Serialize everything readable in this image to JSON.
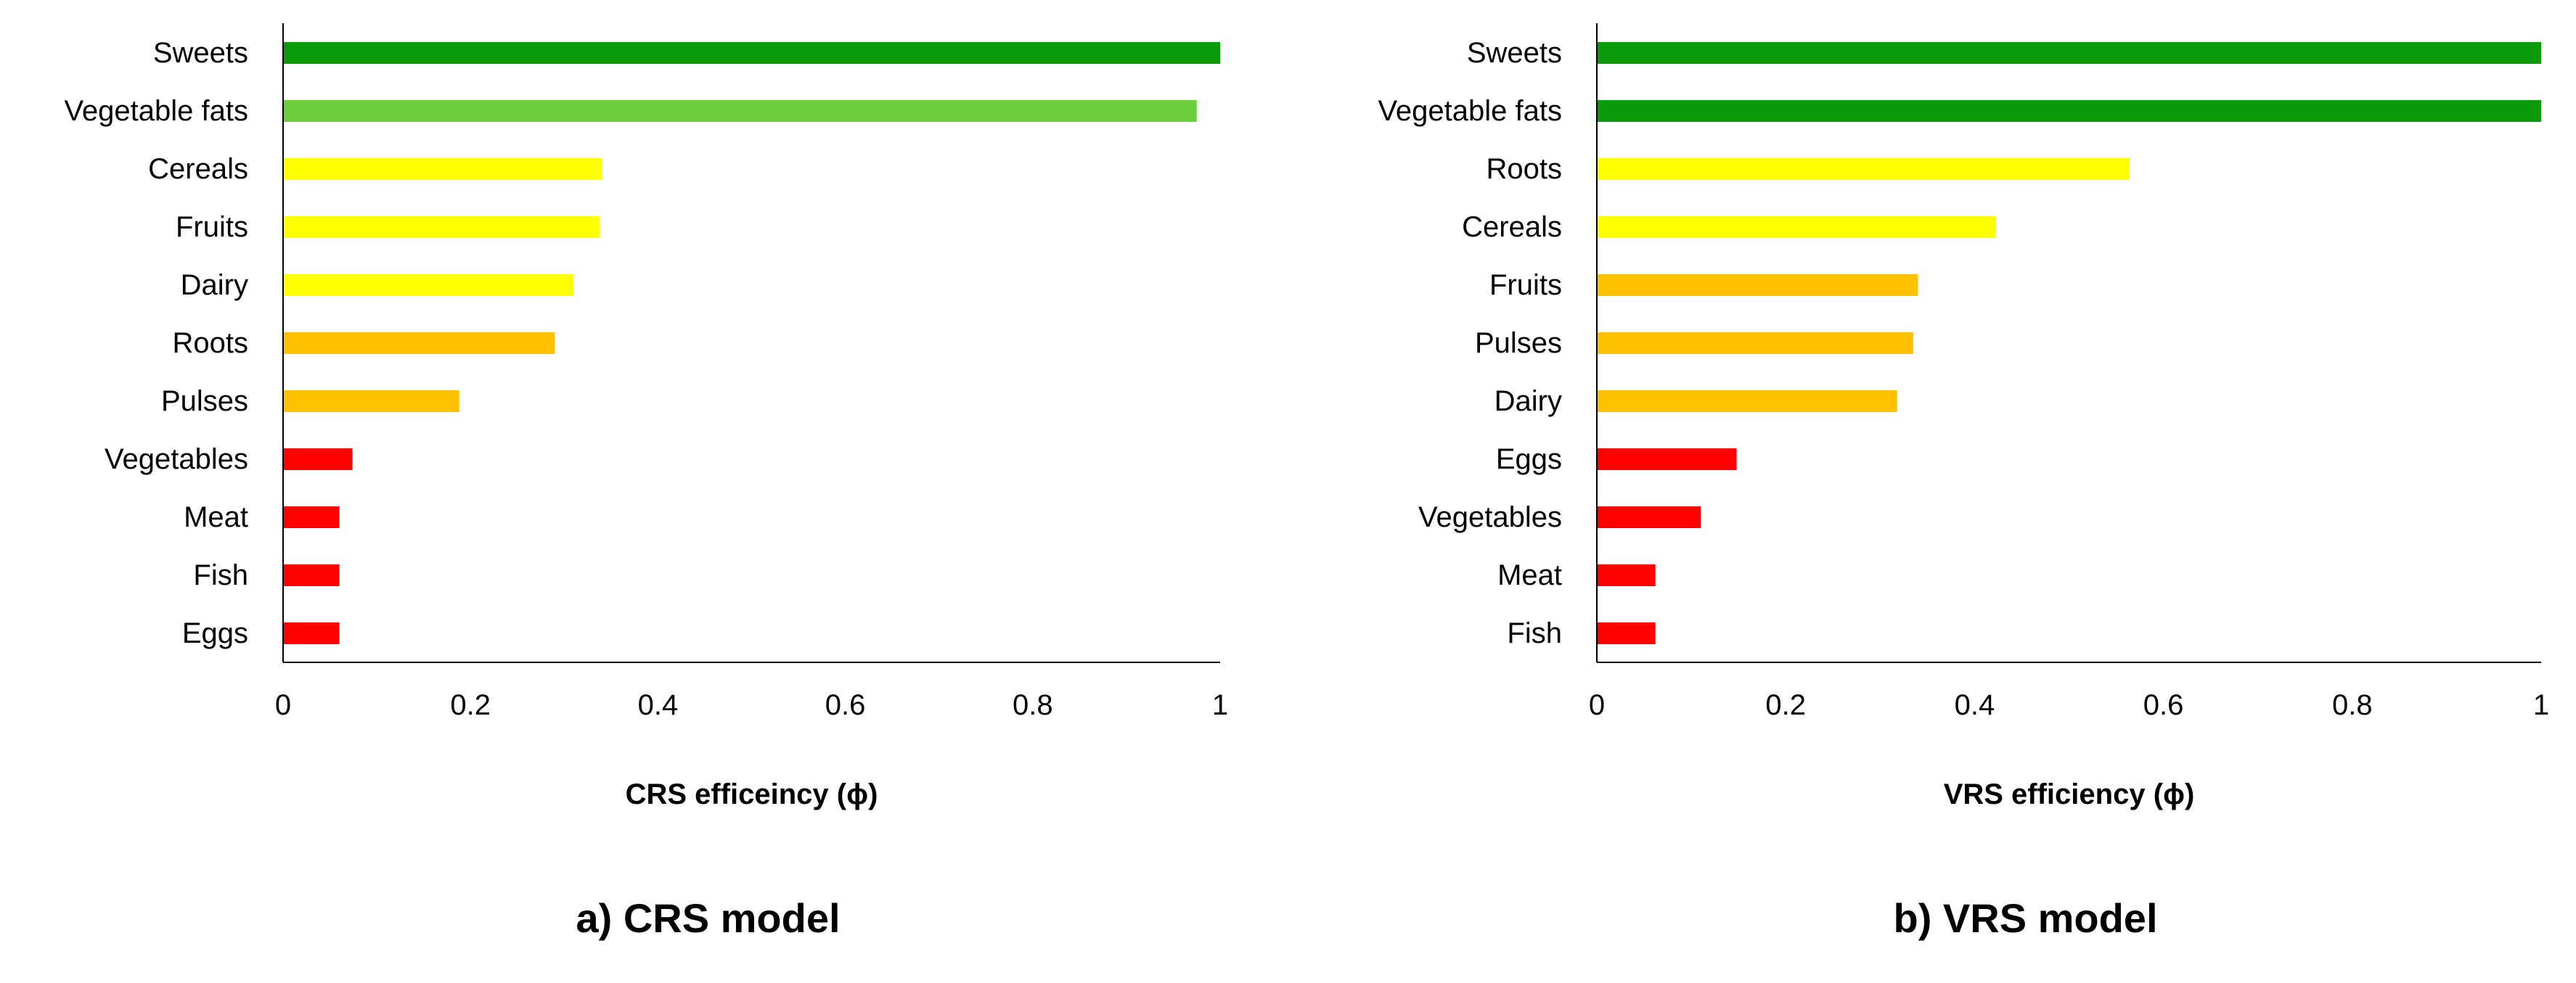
{
  "chart_data": [
    {
      "type": "bar",
      "orientation": "horizontal",
      "caption": "a) CRS model",
      "xlabel": "CRS efficeincy (ϕ)",
      "ylabel": "",
      "xlim": [
        0,
        1
      ],
      "xticks": [
        0,
        0.2,
        0.4,
        0.6,
        0.8,
        1
      ],
      "xtick_labels": [
        "0",
        "0.2",
        "0.4",
        "0.6",
        "0.8",
        "1"
      ],
      "grid": false,
      "categories": [
        "Sweets",
        "Vegetable fats",
        "Cereals",
        "Fruits",
        "Dairy",
        "Roots",
        "Pulses",
        "Vegetables",
        "Meat",
        "Fish",
        "Eggs"
      ],
      "values": [
        1.0,
        0.975,
        0.34,
        0.338,
        0.31,
        0.29,
        0.188,
        0.074,
        0.06,
        0.06,
        0.06
      ],
      "bar_colors": [
        "#0a9a0a",
        "#6dce3c",
        "#ffff00",
        "#ffff00",
        "#ffff00",
        "#ffc000",
        "#ffc000",
        "#ff0000",
        "#ff0000",
        "#ff0000",
        "#ff0000"
      ]
    },
    {
      "type": "bar",
      "orientation": "horizontal",
      "caption": "b) VRS model",
      "xlabel": "VRS efficiency (ϕ)",
      "ylabel": "",
      "xlim": [
        0,
        1
      ],
      "xticks": [
        0,
        0.2,
        0.4,
        0.6,
        0.8,
        1
      ],
      "xtick_labels": [
        "0",
        "0.2",
        "0.4",
        "0.6",
        "0.8",
        "1"
      ],
      "grid": false,
      "categories": [
        "Sweets",
        "Vegetable fats",
        "Roots",
        "Cereals",
        "Fruits",
        "Pulses",
        "Dairy",
        "Eggs",
        "Vegetables",
        "Meat",
        "Fish"
      ],
      "values": [
        1.0,
        1.0,
        0.564,
        0.422,
        0.34,
        0.335,
        0.318,
        0.148,
        0.11,
        0.062,
        0.062
      ],
      "bar_colors": [
        "#0a9a0a",
        "#0a9a0a",
        "#ffff00",
        "#ffff00",
        "#ffc000",
        "#ffc000",
        "#ffc000",
        "#ff0000",
        "#ff0000",
        "#ff0000",
        "#ff0000"
      ]
    }
  ]
}
